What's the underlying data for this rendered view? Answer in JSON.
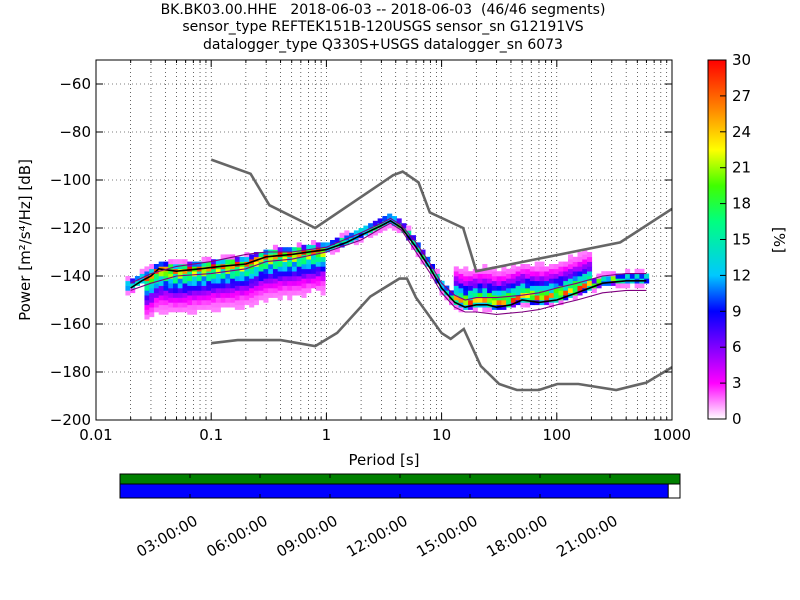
{
  "title": {
    "line1": "BK.BK03.00.HHE   2018-06-03 -- 2018-06-03  (46/46 segments)",
    "line2": "sensor_type REFTEK151B-120USGS sensor_sn G12191VS",
    "line3": "datalogger_type Q330S+USGS datalogger_sn 6073"
  },
  "chart_data": [
    {
      "type": "heatmap",
      "title": "BK.BK03.00.HHE   2018-06-03 -- 2018-06-03  (46/46 segments)",
      "xlabel": "Period [s]",
      "ylabel": "Power [m²/s⁴/Hz] [dB]",
      "xscale": "log",
      "xlim": [
        0.01,
        1000
      ],
      "ylim": [
        -200,
        -50
      ],
      "x_ticks": [
        0.01,
        0.1,
        1,
        10,
        100,
        1000
      ],
      "x_tick_labels": [
        "0.01",
        "0.1",
        "1",
        "10",
        "100",
        "1000"
      ],
      "y_ticks": [
        -200,
        -180,
        -160,
        -140,
        -120,
        -100,
        -80,
        -60
      ],
      "y_tick_labels": [
        "−200",
        "−180",
        "−160",
        "−140",
        "−120",
        "−100",
        "−80",
        "−60"
      ],
      "grid": "dotted",
      "colorbar": {
        "label": "[%]",
        "min": 0,
        "max": 30,
        "ticks": [
          0,
          3,
          6,
          9,
          12,
          15,
          18,
          21,
          24,
          27,
          30
        ],
        "colors": [
          "#ffffff",
          "#ff00ff",
          "#8000ff",
          "#0000ff",
          "#00c8ff",
          "#00ff80",
          "#40ff00",
          "#ffff00",
          "#ff8000",
          "#ff0000"
        ]
      },
      "curves": [
        {
          "name": "high-noise-model",
          "color": "#666666",
          "x": [
            0.1,
            0.22,
            0.32,
            0.8,
            3.8,
            4.6,
            6.3,
            7.9,
            15.4,
            20,
            354.8,
            1000
          ],
          "y": [
            -91.5,
            -97.4,
            -110.5,
            -120,
            -98,
            -96.5,
            -101,
            -113.5,
            -120,
            -138,
            -126,
            -112
          ]
        },
        {
          "name": "low-noise-model",
          "color": "#666666",
          "x": [
            0.1,
            0.17,
            0.4,
            0.8,
            1.24,
            2.4,
            4.3,
            5,
            6,
            10,
            12,
            15.6,
            21.9,
            31.6,
            45,
            70,
            101,
            154,
            328,
            600,
            1000
          ],
          "y": [
            -168,
            -166.7,
            -166.7,
            -169.2,
            -163.7,
            -148.6,
            -141.1,
            -141.1,
            -149,
            -163.8,
            -166.2,
            -162.1,
            -177.5,
            -185,
            -187.5,
            -187.5,
            -185,
            -185,
            -187.5,
            -184.4,
            -178
          ]
        },
        {
          "name": "mode-curve",
          "color": "#000000",
          "x": [
            0.02,
            0.025,
            0.03,
            0.035,
            0.05,
            0.08,
            0.12,
            0.2,
            0.3,
            0.5,
            1,
            1.5,
            2,
            3,
            3.6,
            4.5,
            6,
            8,
            10,
            13,
            16,
            20,
            25,
            30,
            40,
            50,
            70,
            100,
            150,
            250,
            400,
            600
          ],
          "y": [
            -145,
            -142,
            -140,
            -137,
            -138,
            -137,
            -136,
            -135,
            -132,
            -131,
            -129,
            -126,
            -123,
            -119,
            -117,
            -120,
            -128,
            -137,
            -145,
            -151,
            -153,
            -152,
            -152,
            -153,
            -152,
            -150,
            -151,
            -150,
            -147,
            -143,
            -142,
            -142
          ]
        },
        {
          "name": "percentile-high-curve",
          "color": "#800080",
          "x": [
            0.02,
            0.03,
            0.05,
            0.1,
            0.2,
            0.3,
            0.5,
            1,
            2,
            3,
            3.6,
            4.5,
            6,
            8,
            10,
            13,
            16,
            20,
            30,
            50,
            70,
            100,
            150,
            250,
            400,
            600
          ],
          "y": [
            -143,
            -139,
            -136,
            -134,
            -131,
            -130,
            -130,
            -128,
            -122,
            -118,
            -116,
            -119,
            -126,
            -135,
            -143,
            -148,
            -150,
            -149,
            -149,
            -148,
            -147,
            -145,
            -143,
            -140,
            -139,
            -139
          ]
        },
        {
          "name": "percentile-low-curve",
          "color": "#800080",
          "x": [
            0.02,
            0.03,
            0.05,
            0.1,
            0.2,
            0.3,
            0.5,
            1,
            2,
            3,
            3.6,
            4.5,
            6,
            8,
            10,
            13,
            16,
            20,
            30,
            50,
            70,
            100,
            150,
            250,
            400,
            600
          ],
          "y": [
            -146,
            -143,
            -140,
            -139,
            -137,
            -134,
            -133,
            -130,
            -125,
            -120,
            -118,
            -121,
            -130,
            -139,
            -147,
            -153,
            -155,
            -155,
            -156,
            -155,
            -154,
            -152,
            -150,
            -147,
            -146,
            -146
          ]
        }
      ]
    },
    {
      "type": "timeline",
      "tick_labels": [
        "03:00:00",
        "06:00:00",
        "09:00:00",
        "12:00:00",
        "15:00:00",
        "18:00:00",
        "21:00:00"
      ],
      "data_bar_color": "#008000",
      "coverage_color": "#0000ff",
      "coverage_fraction": 0.979
    }
  ]
}
